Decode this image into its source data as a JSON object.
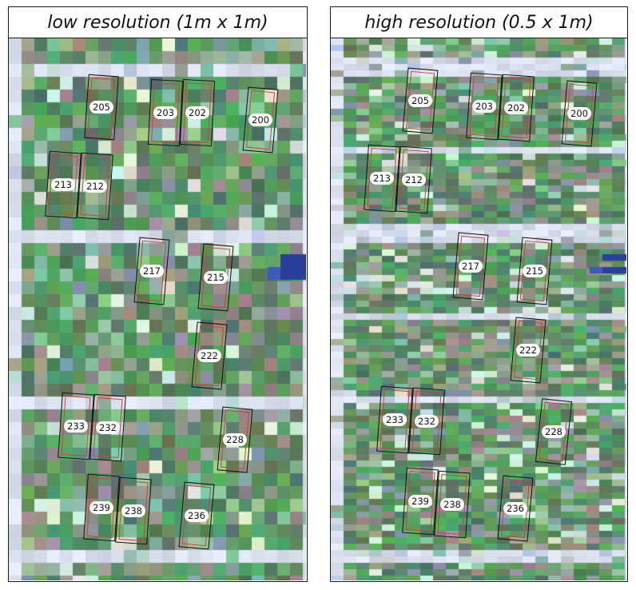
{
  "panels": [
    {
      "id": "left",
      "title": "low resolution (1m x 1m)",
      "fields": [
        {
          "label": "205"
        },
        {
          "label": "203"
        },
        {
          "label": "202"
        },
        {
          "label": "200"
        },
        {
          "label": "213"
        },
        {
          "label": "212"
        },
        {
          "label": "217"
        },
        {
          "label": "215"
        },
        {
          "label": "222"
        },
        {
          "label": "233"
        },
        {
          "label": "232"
        },
        {
          "label": "228"
        },
        {
          "label": "239"
        },
        {
          "label": "238"
        },
        {
          "label": "236"
        }
      ]
    },
    {
      "id": "right",
      "title": "high resolution (0.5 x 1m)",
      "fields": [
        {
          "label": "205"
        },
        {
          "label": "203"
        },
        {
          "label": "202"
        },
        {
          "label": "200"
        },
        {
          "label": "213"
        },
        {
          "label": "212"
        },
        {
          "label": "217"
        },
        {
          "label": "215"
        },
        {
          "label": "222"
        },
        {
          "label": "233"
        },
        {
          "label": "232"
        },
        {
          "label": "228"
        },
        {
          "label": "239"
        },
        {
          "label": "238"
        },
        {
          "label": "236"
        }
      ]
    }
  ],
  "colors": {
    "outer_outline": "#111111",
    "inner_outline": "#c9443a",
    "label_background": "#ffffff"
  }
}
